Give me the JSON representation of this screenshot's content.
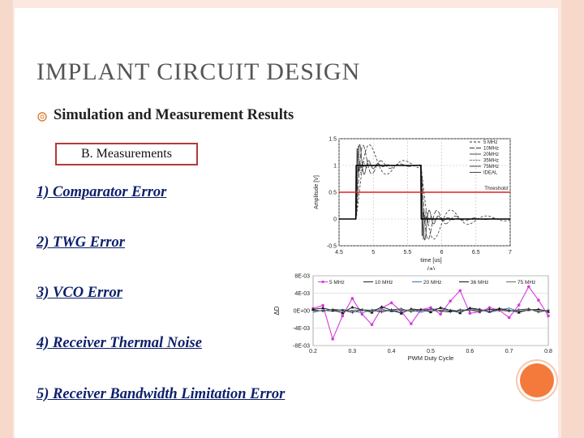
{
  "slide": {
    "title": "IMPLANT  CIRCUIT DESIGN",
    "bullet": "Simulation and Measurement Results",
    "section_label": "B. Measurements",
    "items": [
      "1) Comparator Error",
      "2) TWG Error",
      "3) VCO Error",
      "4) Receiver Thermal Noise",
      "5) Receiver Bandwidth Limitation Error"
    ]
  },
  "chart_data": [
    {
      "type": "line",
      "caption": "(a)",
      "xlabel": "time [us]",
      "ylabel": "Amplitude [V]",
      "xlim": [
        4.5,
        7
      ],
      "ylim": [
        -0.5,
        1.5
      ],
      "xticks": [
        "4.5",
        "5",
        "5.5",
        "6",
        "6.5",
        "7"
      ],
      "yticks": [
        "1.5",
        "1",
        "0.5",
        "0",
        "-0.5"
      ],
      "threshold": {
        "label": "Threshold",
        "value": 0.5,
        "color": "#e02020"
      },
      "legend_position": "top-right",
      "series": [
        {
          "name": "5 MHz",
          "tau": 0.17,
          "freq": 1.8,
          "damp": 0.6,
          "dash": "3,2"
        },
        {
          "name": "10MHz",
          "tau": 0.09,
          "freq": 3.5,
          "damp": 0.55,
          "dash": "6,2"
        },
        {
          "name": "20MHz",
          "tau": 0.05,
          "freq": 7,
          "damp": 0.5,
          "dash": ""
        },
        {
          "name": "35MHz",
          "tau": 0.03,
          "freq": 12,
          "damp": 0.45,
          "dash": "1,1"
        },
        {
          "name": "75MHz",
          "tau": 0.015,
          "freq": 25,
          "damp": 0.35,
          "dash": ""
        },
        {
          "name": "IDEAL",
          "tau": 0,
          "freq": 0,
          "damp": 0,
          "dash": ""
        }
      ],
      "pulse": {
        "rise": 4.75,
        "fall": 5.7
      }
    },
    {
      "type": "line",
      "xlabel": "PWM Duty Cycle",
      "ylabel": "ΔD",
      "xlim": [
        0.2,
        0.8
      ],
      "ylim": [
        -0.008,
        0.008
      ],
      "xticks": [
        "0.2",
        "0.3",
        "0.4",
        "0.5",
        "0.6",
        "0.7",
        "0.8"
      ],
      "yticks": [
        "8E-03",
        "4E-03",
        "0E+00",
        "-4E-03",
        "-8E-03"
      ],
      "legend_position": "top",
      "series": [
        {
          "name": "5 MHz",
          "color": "#d63adf",
          "marker": "circle",
          "values": [
            0.0005,
            0.0012,
            -0.0065,
            -0.0012,
            0.0028,
            -0.0008,
            -0.0032,
            0.0006,
            0.0018,
            -0.0002,
            -0.003,
            0.0002,
            0.0007,
            -0.0008,
            0.0022,
            0.0046,
            -0.0006,
            -0.0003,
            0.0007,
            0.0001,
            -0.0016,
            0.0013,
            0.0055,
            0.0024,
            -0.0012
          ]
        },
        {
          "name": "10 MHz",
          "color": "#222222",
          "marker": "plus",
          "values": [
            0.0002,
            -0.0001,
            0.0003,
            0.0001,
            -0.0004,
            0.0002,
            0.0001,
            -0.0003,
            0.0002,
            0.0004,
            -0.0002,
            0.0001,
            0.0003,
            -0.0001,
            -0.0003,
            0.0002,
            0.0001,
            -0.0002,
            0.0003,
            0.0001,
            -0.0001,
            0.0002,
            0.0004,
            -0.0003,
            0.0001
          ]
        },
        {
          "name": "20 MHz",
          "color": "#3a6fb5",
          "marker": "none",
          "values": [
            -0.0004,
            0.0001,
            -0.0002,
            0.0003,
            -0.0001,
            -0.0005,
            0.0002,
            0.0004,
            -0.0003,
            0.0001,
            0.0002,
            -0.0004,
            0.0003,
            0.0005,
            -0.0002,
            -0.0001,
            0.0004,
            0.0002,
            -0.0004,
            0.0001,
            0.0006,
            -0.0002,
            0.0001,
            0.0003,
            -0.0001
          ]
        },
        {
          "name": "36 MHz",
          "color": "#111111",
          "marker": "triangle",
          "values": [
            0.0003,
            0.0006,
            0.0001,
            -0.0005,
            0.0008,
            0.0002,
            -0.0004,
            0.0009,
            0.0001,
            -0.0006,
            0.0004,
            0.0002,
            -0.0003,
            0.0007,
            0.0001,
            -0.0005,
            0.0006,
            0.0003,
            -0.0002,
            0.0005,
            0.0001,
            -0.0004,
            0.0002,
            0.0003,
            -0.0002
          ]
        },
        {
          "name": "75 MHz",
          "color": "#6a6a6a",
          "marker": "none",
          "values": [
            -0.0002,
            0.0001,
            0.0002,
            -0.0001,
            0.0001,
            0.0002,
            -0.0002,
            0.0001,
            0.0001,
            -0.0001,
            0.0002,
            0.0001,
            -0.0001,
            0.0001,
            0.0002,
            -0.0001,
            0.0001,
            0.0002,
            -0.0002,
            0.0001,
            0.0001,
            -0.0001,
            0.0002,
            0.0001,
            0.0
          ]
        }
      ]
    }
  ]
}
